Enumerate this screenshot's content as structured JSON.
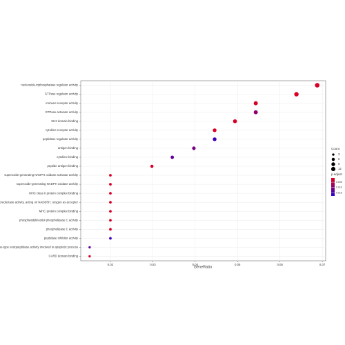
{
  "chart_data": {
    "type": "dot",
    "categories": [
      "nucleoside-triphosphatase regulator activity",
      "GTPase regulator activity",
      "immune receptor activity",
      "GTPase activator activity",
      "SH3 domain binding",
      "cytokine receptor activity",
      "peptidase regulator activity",
      "antigen binding",
      "cytokine binding",
      "peptide antigen binding",
      "superoxide-generating NADPH oxidase activator activity",
      "superoxide-generating NADPH oxidase activity",
      "MHC class II protein complex binding",
      "oxidoreductase activity, acting on NAD(P)H, oxygen as acceptor",
      "MHC protein complex binding",
      "phosphatidylinositol phospholipase C activity",
      "phospholipase C activity",
      "peptidase inhibitor activity",
      "cysteine-type endopeptidase activity involved in apoptotic process",
      "CARD domain binding"
    ],
    "values": [
      0.0688,
      0.0639,
      0.0543,
      0.0543,
      0.0494,
      0.0446,
      0.0446,
      0.0397,
      0.0346,
      0.0298,
      0.02,
      0.02,
      0.02,
      0.02,
      0.02,
      0.02,
      0.02,
      0.02,
      0.0151,
      0.0151
    ],
    "counts": [
      14,
      13,
      11,
      11,
      10,
      9,
      9,
      8,
      7,
      6,
      4,
      4,
      4,
      4,
      4,
      4,
      4,
      4,
      3,
      3
    ],
    "p_adjust": [
      0.002,
      0.002,
      0.002,
      0.009,
      0.002,
      0.002,
      0.016,
      0.011,
      0.013,
      0.002,
      0.002,
      0.002,
      0.002,
      0.002,
      0.002,
      0.002,
      0.002,
      0.016,
      0.014,
      0.002
    ],
    "xlabel": "GeneRatio",
    "xlim": [
      0.013,
      0.0708
    ],
    "xticks": [
      0.02,
      0.03,
      0.04,
      0.05,
      0.06,
      0.07
    ],
    "grid": true,
    "size_legend": {
      "title": "Count",
      "values": [
        3,
        6,
        9,
        12
      ]
    },
    "color_legend": {
      "title": "p.adjust",
      "clim": [
        0.001,
        0.018
      ],
      "colors": [
        "#e3001b",
        "#2a00d0"
      ],
      "ticks": [
        {
          "value": 0.005,
          "label": "0.005"
        },
        {
          "value": 0.01,
          "label": "0.010"
        },
        {
          "value": 0.015,
          "label": "0.015"
        }
      ]
    }
  }
}
